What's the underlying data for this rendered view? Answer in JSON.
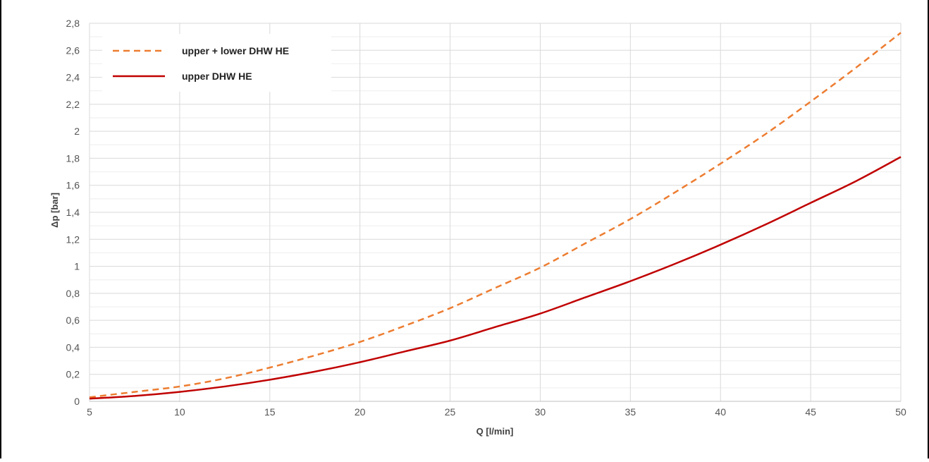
{
  "chart_data": {
    "type": "line",
    "title": "",
    "xlabel": "Q [l/min]",
    "ylabel": "Δp [bar]",
    "xlim": [
      5,
      50
    ],
    "ylim": [
      0,
      2.8
    ],
    "x_ticks": [
      5,
      10,
      15,
      20,
      25,
      30,
      35,
      40,
      45,
      50
    ],
    "x_tick_labels": [
      "5",
      "10",
      "15",
      "20",
      "25",
      "30",
      "35",
      "40",
      "45",
      "50"
    ],
    "y_ticks": [
      0,
      0.2,
      0.4,
      0.6,
      0.8,
      1,
      1.2,
      1.4,
      1.6,
      1.8,
      2,
      2.2,
      2.4,
      2.6,
      2.8
    ],
    "y_tick_labels": [
      "0",
      "0,2",
      "0,4",
      "0,6",
      "0,8",
      "1",
      "1,2",
      "1,4",
      "1,6",
      "1,8",
      "2",
      "2,2",
      "2,4",
      "2,6",
      "2,8"
    ],
    "y_minor_step": 0.1,
    "grid": true,
    "legend_position": "top-left",
    "series": [
      {
        "name": "upper + lower DHW HE",
        "color": "#ed7d31",
        "dashed": true,
        "x": [
          5,
          7.5,
          10,
          12.5,
          15,
          17.5,
          20,
          22.5,
          25,
          27.5,
          30,
          32.5,
          35,
          37.5,
          40,
          42.5,
          45,
          47.5,
          50
        ],
        "y": [
          0.03,
          0.07,
          0.11,
          0.17,
          0.25,
          0.34,
          0.44,
          0.56,
          0.69,
          0.84,
          0.99,
          1.17,
          1.35,
          1.55,
          1.76,
          1.98,
          2.22,
          2.47,
          2.73
        ]
      },
      {
        "name": "upper DHW HE",
        "color": "#c00000",
        "dashed": false,
        "x": [
          5,
          7.5,
          10,
          12.5,
          15,
          17.5,
          20,
          22.5,
          25,
          27.5,
          30,
          32.5,
          35,
          37.5,
          40,
          42.5,
          45,
          47.5,
          50
        ],
        "y": [
          0.02,
          0.04,
          0.07,
          0.11,
          0.16,
          0.22,
          0.29,
          0.37,
          0.45,
          0.55,
          0.65,
          0.77,
          0.89,
          1.02,
          1.16,
          1.31,
          1.47,
          1.63,
          1.81
        ]
      }
    ]
  }
}
